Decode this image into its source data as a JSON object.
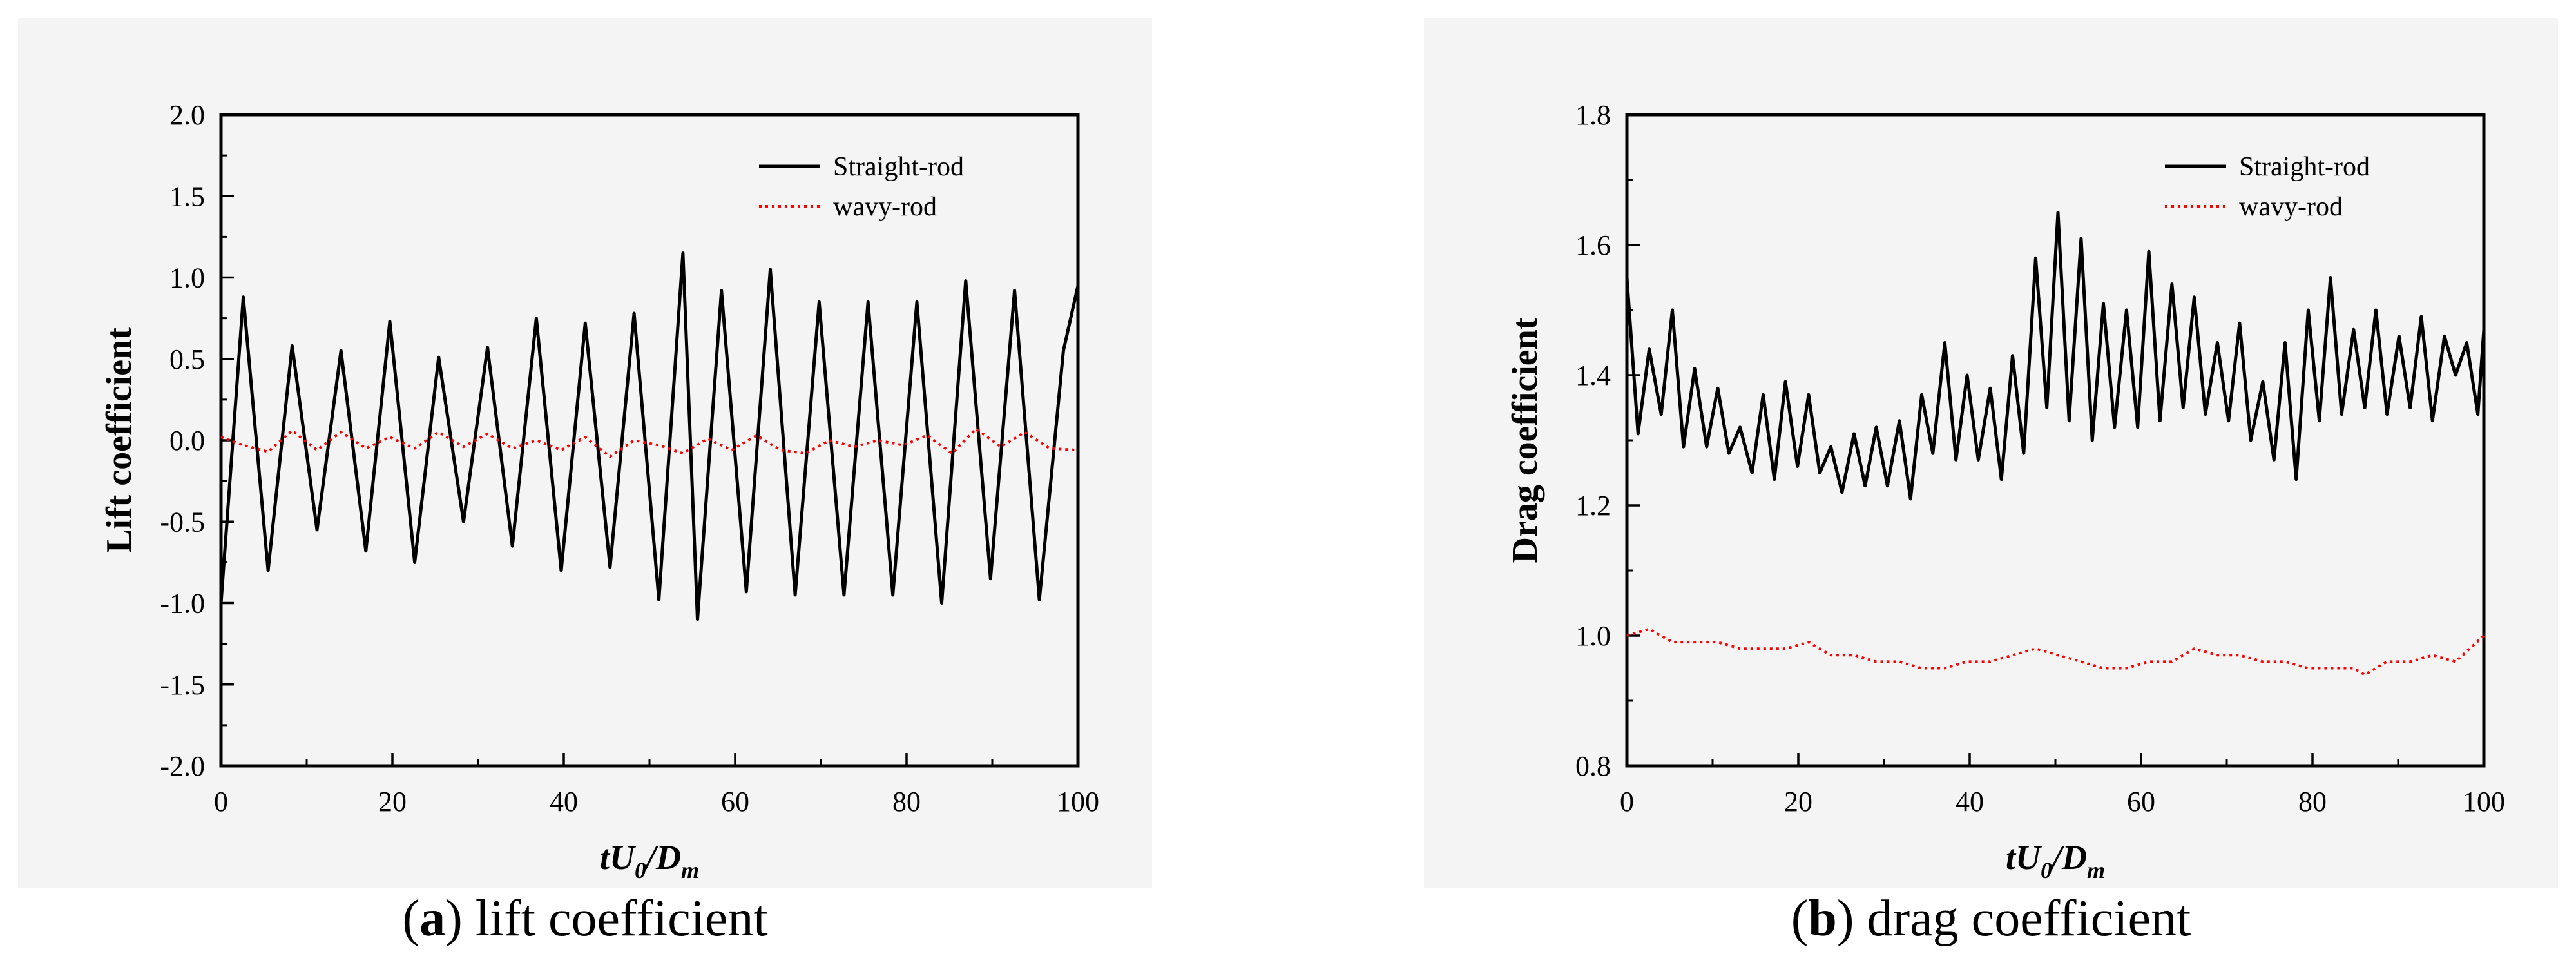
{
  "chart_data": [
    {
      "type": "line",
      "panel": "a",
      "caption": {
        "letter": "a",
        "text": "lift coefficient"
      },
      "xlabel": {
        "t": "t",
        "U": "U",
        "sub0": "0",
        "slash": "/",
        "D": "D",
        "subm": "m"
      },
      "ylabel": "Lift coefficient",
      "xlim": [
        0,
        100
      ],
      "ylim": [
        -2.0,
        2.0
      ],
      "xticks": [
        0,
        20,
        40,
        60,
        80,
        100
      ],
      "xtick_labels": [
        "0",
        "20",
        "40",
        "60",
        "80",
        "100"
      ],
      "yticks": [
        -2.0,
        -1.5,
        -1.0,
        -0.5,
        0.0,
        0.5,
        1.0,
        1.5,
        2.0
      ],
      "ytick_labels": [
        "-2.0",
        "-1.5",
        "-1.0",
        "-0.5",
        "0.0",
        "0.5",
        "1.0",
        "1.5",
        "2.0"
      ],
      "legend_position": "top-right",
      "series": [
        {
          "name": "Straight-rod",
          "color": "#000000",
          "style": "solid",
          "x": [
            0,
            2.6,
            5.5,
            8.3,
            11.2,
            14.0,
            16.9,
            19.7,
            22.6,
            25.4,
            28.3,
            31.1,
            34.0,
            36.8,
            39.7,
            42.5,
            45.4,
            48.2,
            51.1,
            53.9,
            55.6,
            58.4,
            61.3,
            64.1,
            67.0,
            69.8,
            72.7,
            75.5,
            78.4,
            81.2,
            84.1,
            86.9,
            89.8,
            92.6,
            95.5,
            98.3,
            100
          ],
          "y": [
            -1.0,
            0.88,
            -0.8,
            0.58,
            -0.55,
            0.55,
            -0.68,
            0.73,
            -0.75,
            0.51,
            -0.5,
            0.57,
            -0.65,
            0.75,
            -0.8,
            0.72,
            -0.78,
            0.78,
            -0.98,
            1.15,
            -1.1,
            0.92,
            -0.93,
            1.05,
            -0.95,
            0.85,
            -0.95,
            0.85,
            -0.95,
            0.85,
            -1.0,
            0.98,
            -0.85,
            0.92,
            -0.98,
            0.55,
            0.95
          ]
        },
        {
          "name": "wavy-rod",
          "color": "#ff0000",
          "style": "dotted",
          "x": [
            0,
            2.6,
            5.5,
            8.3,
            11.2,
            14.0,
            16.9,
            19.7,
            22.6,
            25.4,
            28.3,
            31.1,
            34.0,
            36.8,
            39.7,
            42.5,
            45.4,
            48.2,
            51.1,
            53.9,
            56.8,
            59.6,
            62.5,
            65.3,
            68.2,
            71.0,
            73.9,
            76.7,
            79.6,
            82.4,
            85.3,
            88.1,
            91.0,
            93.8,
            96.7,
            100
          ],
          "y": [
            0.02,
            -0.03,
            -0.07,
            0.06,
            -0.06,
            0.05,
            -0.05,
            0.02,
            -0.05,
            0.05,
            -0.04,
            0.04,
            -0.05,
            0.0,
            -0.06,
            0.02,
            -0.1,
            0.0,
            -0.03,
            -0.08,
            0.01,
            -0.06,
            0.03,
            -0.06,
            -0.08,
            0.0,
            -0.04,
            0.0,
            -0.03,
            0.03,
            -0.08,
            0.07,
            -0.04,
            0.05,
            -0.05,
            -0.06
          ]
        }
      ]
    },
    {
      "type": "line",
      "panel": "b",
      "caption": {
        "letter": "b",
        "text": "drag coefficient"
      },
      "xlabel": {
        "t": "t",
        "U": "U",
        "sub0": "0",
        "slash": "/",
        "D": "D",
        "subm": "m"
      },
      "ylabel": "Drag coefficient",
      "xlim": [
        0,
        100
      ],
      "ylim": [
        0.8,
        1.8
      ],
      "xticks": [
        0,
        20,
        40,
        60,
        80,
        100
      ],
      "xtick_labels": [
        "0",
        "20",
        "40",
        "60",
        "80",
        "100"
      ],
      "yticks": [
        0.8,
        1.0,
        1.2,
        1.4,
        1.6,
        1.8
      ],
      "ytick_labels": [
        "0.8",
        "1.0",
        "1.2",
        "1.4",
        "1.6",
        "1.8"
      ],
      "legend_position": "top-right",
      "series": [
        {
          "name": "Straight-rod",
          "color": "#000000",
          "style": "solid",
          "x": [
            0,
            1.3,
            2.6,
            4.0,
            5.3,
            6.6,
            7.9,
            9.3,
            10.6,
            11.9,
            13.2,
            14.6,
            15.9,
            17.2,
            18.5,
            19.9,
            21.2,
            22.5,
            23.8,
            25.1,
            26.5,
            27.8,
            29.1,
            30.4,
            31.8,
            33.1,
            34.4,
            35.7,
            37.1,
            38.4,
            39.7,
            41.0,
            42.4,
            43.7,
            45.0,
            46.3,
            47.7,
            49.0,
            50.3,
            51.6,
            53.0,
            54.3,
            55.6,
            56.9,
            58.3,
            59.6,
            60.9,
            62.2,
            63.6,
            64.9,
            66.2,
            67.5,
            68.9,
            70.2,
            71.5,
            72.8,
            74.2,
            75.5,
            76.8,
            78.1,
            79.5,
            80.8,
            82.1,
            83.4,
            84.8,
            86.1,
            87.4,
            88.7,
            90.1,
            91.4,
            92.7,
            94.0,
            95.4,
            96.7,
            98.0,
            99.3,
            100
          ],
          "y": [
            1.55,
            1.31,
            1.44,
            1.34,
            1.5,
            1.29,
            1.41,
            1.29,
            1.38,
            1.28,
            1.32,
            1.25,
            1.37,
            1.24,
            1.39,
            1.26,
            1.37,
            1.25,
            1.29,
            1.22,
            1.31,
            1.23,
            1.32,
            1.23,
            1.33,
            1.21,
            1.37,
            1.28,
            1.45,
            1.27,
            1.4,
            1.27,
            1.38,
            1.24,
            1.43,
            1.28,
            1.58,
            1.35,
            1.65,
            1.33,
            1.61,
            1.3,
            1.51,
            1.32,
            1.5,
            1.32,
            1.59,
            1.33,
            1.54,
            1.35,
            1.52,
            1.34,
            1.45,
            1.33,
            1.48,
            1.3,
            1.39,
            1.27,
            1.45,
            1.24,
            1.5,
            1.33,
            1.55,
            1.34,
            1.47,
            1.35,
            1.5,
            1.34,
            1.46,
            1.35,
            1.49,
            1.33,
            1.46,
            1.4,
            1.45,
            1.34,
            1.47
          ]
        },
        {
          "name": "wavy-rod",
          "color": "#ff0000",
          "style": "dotted",
          "x": [
            0,
            2.6,
            5.3,
            7.9,
            10.6,
            13.2,
            15.9,
            18.5,
            21.2,
            23.8,
            26.5,
            29.1,
            31.8,
            34.4,
            37.1,
            39.7,
            42.4,
            45.0,
            47.7,
            50.3,
            53.0,
            55.6,
            58.3,
            60.9,
            63.6,
            66.2,
            68.9,
            71.5,
            74.2,
            76.8,
            79.5,
            82.1,
            84.8,
            86.1,
            88.7,
            91.4,
            94.0,
            96.7,
            100
          ],
          "y": [
            1.0,
            1.01,
            0.99,
            0.99,
            0.99,
            0.98,
            0.98,
            0.98,
            0.99,
            0.97,
            0.97,
            0.96,
            0.96,
            0.95,
            0.95,
            0.96,
            0.96,
            0.97,
            0.98,
            0.97,
            0.96,
            0.95,
            0.95,
            0.96,
            0.96,
            0.98,
            0.97,
            0.97,
            0.96,
            0.96,
            0.95,
            0.95,
            0.95,
            0.94,
            0.96,
            0.96,
            0.97,
            0.96,
            1.0
          ]
        }
      ]
    }
  ]
}
